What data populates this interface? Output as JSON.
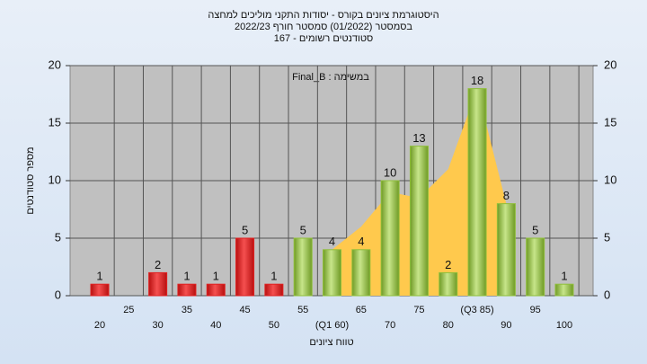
{
  "chart_data": {
    "type": "bar",
    "title": "היסטוגרמת ציונים בקורס - יסודות התקני מוליכים למחצה",
    "subtitle": "בסמסטר  (01/2022)  סמסטר חורף  2022/23",
    "subtitle2": "סטודנטים רשומים - 167",
    "annotation": "Final_B : במשימה",
    "x_label": "טווח ציונים",
    "y_label": "מספר סטודנטים",
    "categories": [
      "20",
      "25",
      "30",
      "35",
      "40",
      "45",
      "50",
      "55",
      "(Q1 60)",
      "65",
      "70",
      "75",
      "80",
      "(Q3 85)",
      "90",
      "95",
      "100"
    ],
    "values": [
      1,
      0,
      2,
      1,
      1,
      5,
      1,
      5,
      4,
      4,
      10,
      13,
      2,
      18,
      8,
      5,
      1
    ],
    "colors": [
      "#e02020",
      "#e02020",
      "#e02020",
      "#e02020",
      "#e02020",
      "#e02020",
      "#e02020",
      "#8fbf3a",
      "#8fbf3a",
      "#8fbf3a",
      "#8fbf3a",
      "#8fbf3a",
      "#8fbf3a",
      "#8fbf3a",
      "#8fbf3a",
      "#8fbf3a",
      "#8fbf3a"
    ],
    "area": {
      "color": "#ffc94d",
      "values": [
        null,
        null,
        null,
        null,
        null,
        null,
        null,
        null,
        4,
        6,
        9,
        8.5,
        11,
        18,
        8,
        null,
        null
      ]
    },
    "ylim": [
      0,
      20
    ],
    "yticks": [
      0,
      5,
      10,
      15,
      20
    ],
    "grid": true
  }
}
